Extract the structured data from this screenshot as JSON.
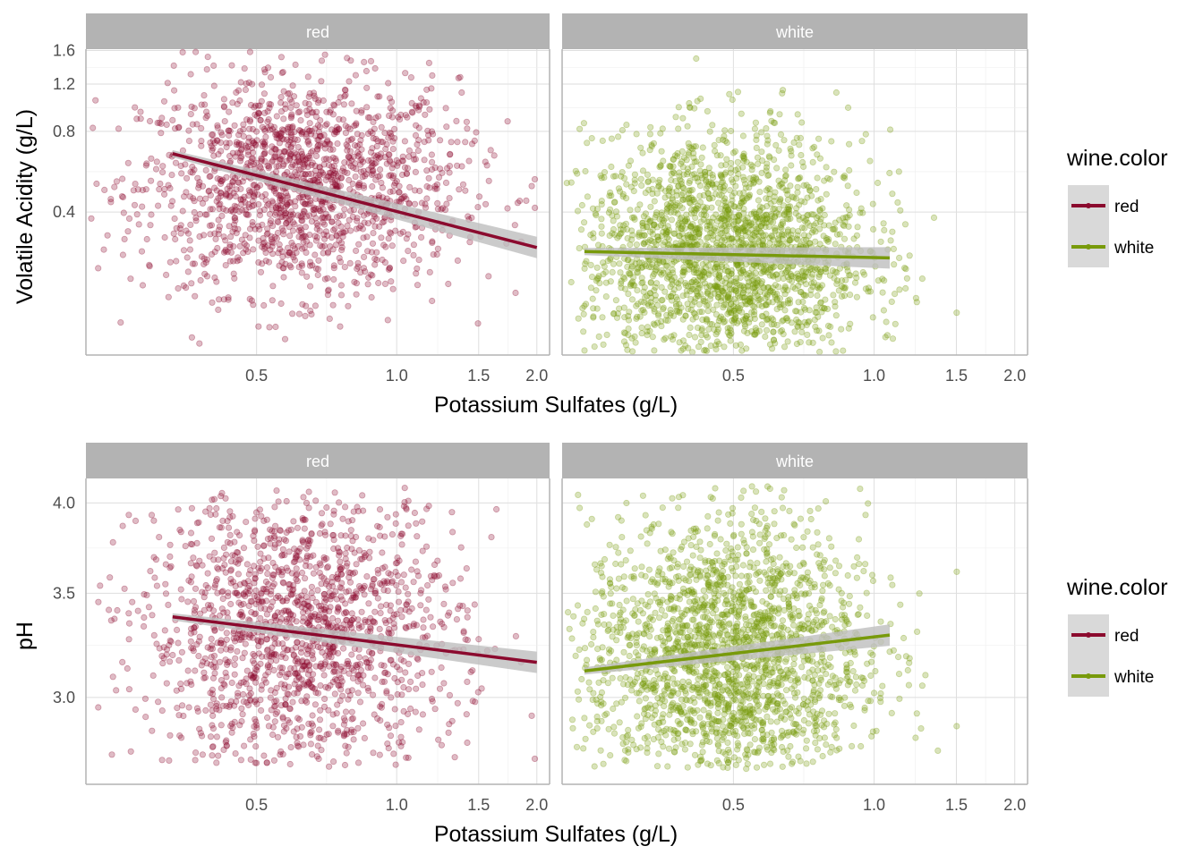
{
  "colors": {
    "red": "#8B0A2E",
    "white": "#789A0B",
    "strip_bg": "#B3B3B3",
    "strip_text": "#FFFFFF",
    "grid": "#DEDEDE",
    "panel_border": "#B3B3B3",
    "ribbon": "#BEBEBE",
    "legend_key_bg": "#D9D9D9"
  },
  "chart_data": [
    {
      "type": "scatter",
      "xlabel": "Potassium Sulfates (g/L)",
      "ylabel": "Volatile Acidity (g/L)",
      "x_scale": "log10",
      "y_scale": "log10",
      "x_ticks": [
        0.5,
        1.0,
        1.5,
        2.0
      ],
      "x_tick_labels": [
        "0.5",
        "1.0",
        "1.5",
        "2.0"
      ],
      "y_ticks": [
        0.4,
        0.8,
        1.2,
        1.6
      ],
      "y_tick_labels": [
        "0.4",
        "0.8",
        "1.2",
        "1.6"
      ],
      "grid": true,
      "legend": {
        "title": "wine.color",
        "position": "right",
        "entries": [
          "red",
          "white"
        ]
      },
      "panels": [
        {
          "strip": "red",
          "color_key": "red",
          "xlim": [
            0.22,
            2.0
          ],
          "ylim": [
            0.12,
            1.6
          ],
          "cloud": {
            "n": 1600,
            "x_center": 0.62,
            "x_spread": 0.17,
            "y_center": 0.5,
            "y_spread": 0.2
          },
          "points": [
            {
              "x": 0.37,
              "y": 1.58
            },
            {
              "x": 0.33,
              "y": 0.88
            },
            {
              "x": 0.52,
              "y": 1.36
            },
            {
              "x": 0.57,
              "y": 1.33
            },
            {
              "x": 1.35,
              "y": 0.73
            },
            {
              "x": 1.43,
              "y": 0.62
            },
            {
              "x": 1.98,
              "y": 0.53
            },
            {
              "x": 1.95,
              "y": 0.5
            },
            {
              "x": 0.73,
              "y": 0.18
            },
            {
              "x": 0.41,
              "y": 0.22
            },
            {
              "x": 1.62,
              "y": 0.65
            },
            {
              "x": 0.36,
              "y": 0.29
            }
          ],
          "fit": {
            "x": [
              0.33,
              2.0
            ],
            "y": [
              0.66,
              0.295
            ]
          }
        },
        {
          "strip": "white",
          "color_key": "white",
          "xlim": [
            0.22,
            2.0
          ],
          "ylim": [
            0.12,
            1.6
          ],
          "cloud": {
            "n": 2200,
            "x_center": 0.48,
            "x_spread": 0.15,
            "y_center": 0.28,
            "y_spread": 0.22
          },
          "points": [
            {
              "x": 0.49,
              "y": 1.1
            },
            {
              "x": 0.52,
              "y": 0.93
            },
            {
              "x": 0.88,
              "y": 0.98
            },
            {
              "x": 0.98,
              "y": 0.62
            },
            {
              "x": 0.96,
              "y": 0.78
            },
            {
              "x": 1.07,
              "y": 0.29
            },
            {
              "x": 0.25,
              "y": 0.19
            },
            {
              "x": 0.44,
              "y": 0.95
            },
            {
              "x": 0.6,
              "y": 0.95
            }
          ],
          "fit": {
            "x": [
              0.24,
              1.08
            ],
            "y": [
              0.285,
              0.27
            ]
          }
        }
      ]
    },
    {
      "type": "scatter",
      "xlabel": "Potassium Sulfates (g/L)",
      "ylabel": "pH",
      "x_scale": "log10",
      "y_scale": "log10",
      "x_ticks": [
        0.5,
        1.0,
        1.5,
        2.0
      ],
      "x_tick_labels": [
        "0.5",
        "1.0",
        "1.5",
        "2.0"
      ],
      "y_ticks": [
        3.0,
        3.5,
        4.0
      ],
      "y_tick_labels": [
        "3.0",
        "3.5",
        "4.0"
      ],
      "grid": true,
      "legend": {
        "title": "wine.color",
        "position": "right",
        "entries": [
          "red",
          "white"
        ]
      },
      "panels": [
        {
          "strip": "red",
          "color_key": "red",
          "xlim": [
            0.22,
            2.0
          ],
          "ylim": [
            2.7,
            4.1
          ],
          "cloud": {
            "n": 1600,
            "x_center": 0.62,
            "x_spread": 0.17,
            "y_center": 3.31,
            "y_spread": 0.045
          },
          "points": [
            {
              "x": 0.58,
              "y": 4.01
            },
            {
              "x": 1.98,
              "y": 2.74
            },
            {
              "x": 1.95,
              "y": 2.92
            },
            {
              "x": 0.42,
              "y": 2.88
            },
            {
              "x": 0.46,
              "y": 2.88
            },
            {
              "x": 0.5,
              "y": 2.88
            },
            {
              "x": 0.8,
              "y": 2.86
            },
            {
              "x": 1.3,
              "y": 3.01
            },
            {
              "x": 1.5,
              "y": 3.27
            },
            {
              "x": 1.85,
              "y": 3.16
            }
          ],
          "fit": {
            "x": [
              0.33,
              2.0
            ],
            "y": [
              3.38,
              3.16
            ]
          }
        },
        {
          "strip": "white",
          "color_key": "white",
          "xlim": [
            0.22,
            2.0
          ],
          "ylim": [
            2.7,
            4.1
          ],
          "cloud": {
            "n": 2200,
            "x_center": 0.48,
            "x_spread": 0.15,
            "y_center": 3.19,
            "y_spread": 0.045
          },
          "points": [
            {
              "x": 0.52,
              "y": 3.82
            },
            {
              "x": 0.44,
              "y": 2.72
            },
            {
              "x": 1.08,
              "y": 3.21
            },
            {
              "x": 0.25,
              "y": 2.99
            },
            {
              "x": 1.0,
              "y": 3.02
            },
            {
              "x": 0.81,
              "y": 3.75
            },
            {
              "x": 0.92,
              "y": 3.69
            }
          ],
          "fit": {
            "x": [
              0.24,
              1.08
            ],
            "y": [
              3.12,
              3.29
            ]
          }
        }
      ]
    }
  ]
}
